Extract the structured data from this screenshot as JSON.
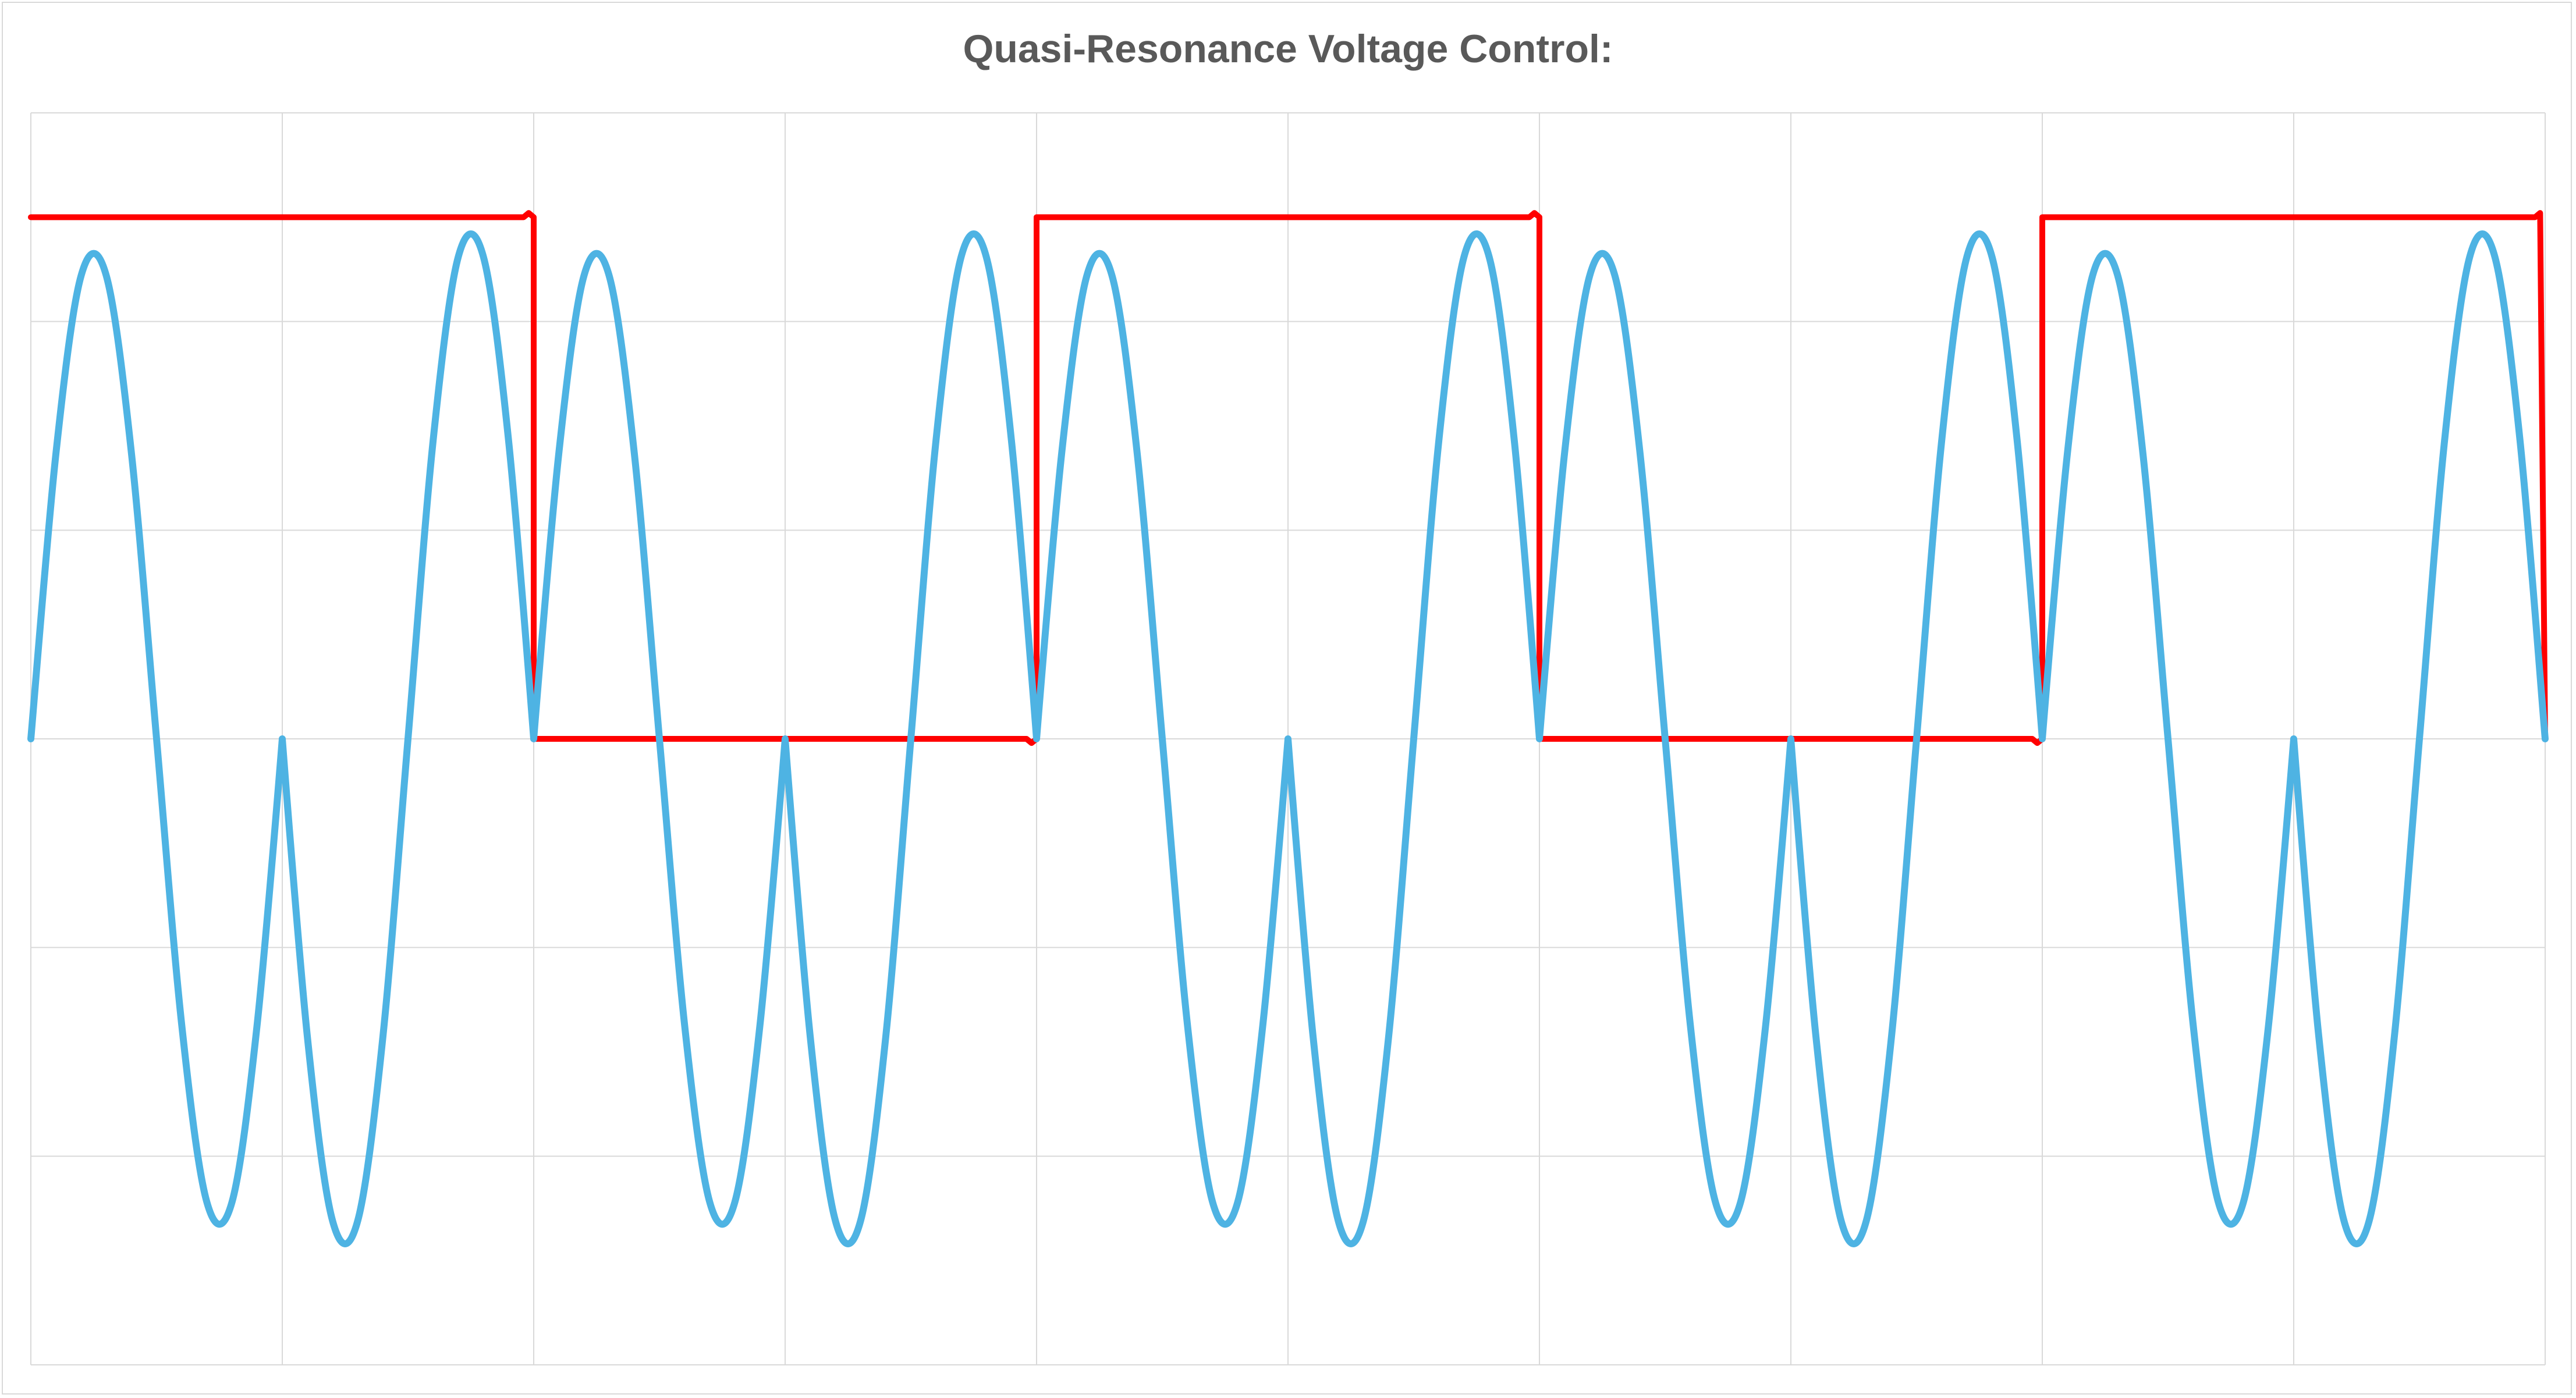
{
  "chart_data": {
    "type": "line",
    "title": "Quasi-Resonance Voltage Control:",
    "xlabel": "",
    "ylabel": "",
    "xlim": [
      0,
      10
    ],
    "ylim": [
      -3,
      3
    ],
    "x_gridlines": [
      0,
      1,
      2,
      3,
      4,
      5,
      6,
      7,
      8,
      9,
      10
    ],
    "y_gridlines": [
      -3,
      -2,
      -1,
      0,
      1,
      2,
      3
    ],
    "grid": true,
    "legend": "none",
    "series": [
      {
        "color": "#ff0000",
        "x": [
          0,
          1.96,
          1.98,
          2.0,
          2.0,
          3.96,
          3.98,
          4.0,
          4.0,
          5.96,
          5.98,
          6.0,
          6.0,
          7.96,
          7.98,
          8.0,
          8.0,
          9.96,
          9.98,
          10.0
        ],
        "y": [
          2.5,
          2.5,
          2.52,
          2.5,
          0,
          0,
          -0.02,
          0,
          2.5,
          2.5,
          2.52,
          2.5,
          0,
          0,
          -0.02,
          0,
          2.5,
          2.5,
          2.52,
          0
        ]
      },
      {
        "color": "#4eb3e3",
        "x": [
          0,
          0.1,
          0.2,
          0.3,
          0.4,
          0.5,
          0.6,
          0.7,
          0.8,
          0.9,
          1.0,
          1.1,
          1.2,
          1.3,
          1.4,
          1.5,
          1.6,
          1.7,
          1.8,
          1.9,
          2.0,
          2.1,
          2.2,
          2.3,
          2.4,
          2.5,
          2.6,
          2.7,
          2.8,
          2.9,
          3.0,
          3.1,
          3.2,
          3.3,
          3.4,
          3.5,
          3.6,
          3.7,
          3.8,
          3.9,
          4.0,
          4.1,
          4.2,
          4.3,
          4.4,
          4.5,
          4.6,
          4.7,
          4.8,
          4.9,
          5.0,
          5.1,
          5.2,
          5.3,
          5.4,
          5.5,
          5.6,
          5.7,
          5.8,
          5.9,
          6.0,
          6.1,
          6.2,
          6.3,
          6.4,
          6.5,
          6.6,
          6.7,
          6.8,
          6.9,
          7.0,
          7.1,
          7.2,
          7.3,
          7.4,
          7.5,
          7.6,
          7.7,
          7.8,
          7.9,
          8.0,
          8.1,
          8.2,
          8.3,
          8.4,
          8.5,
          8.6,
          8.7,
          8.8,
          8.9,
          9.0,
          9.1,
          9.2,
          9.3,
          9.4,
          9.5,
          9.6,
          9.7,
          9.8,
          9.9,
          10.0
        ],
        "y": [
          0,
          1.37,
          2.22,
          2.22,
          1.37,
          0,
          -1.37,
          -2.22,
          -2.22,
          -1.37,
          0,
          -1.43,
          -2.31,
          -2.31,
          -1.43,
          0,
          1.43,
          2.31,
          2.31,
          1.43,
          0,
          1.37,
          2.22,
          2.22,
          1.37,
          0,
          -1.37,
          -2.22,
          -2.22,
          -1.37,
          0,
          -1.43,
          -2.31,
          -2.31,
          -1.43,
          0,
          1.43,
          2.31,
          2.31,
          1.43,
          0,
          1.37,
          2.22,
          2.22,
          1.37,
          0,
          -1.37,
          -2.22,
          -2.22,
          -1.37,
          0,
          -1.43,
          -2.31,
          -2.31,
          -1.43,
          0,
          1.43,
          2.31,
          2.31,
          1.43,
          0,
          1.37,
          2.22,
          2.22,
          1.37,
          0,
          -1.37,
          -2.22,
          -2.22,
          -1.37,
          0,
          -1.43,
          -2.31,
          -2.31,
          -1.43,
          0,
          1.43,
          2.31,
          2.31,
          1.43,
          0,
          1.37,
          2.22,
          2.22,
          1.37,
          0,
          -1.37,
          -2.22,
          -2.22,
          -1.37,
          0,
          -1.43,
          -2.31,
          -2.31,
          -1.43,
          0,
          1.43,
          2.31,
          2.31,
          1.43,
          0
        ]
      }
    ]
  },
  "colors": {
    "gridline": "#d9d9d9",
    "title": "#595959",
    "frame_border": "#d9d9d9"
  }
}
